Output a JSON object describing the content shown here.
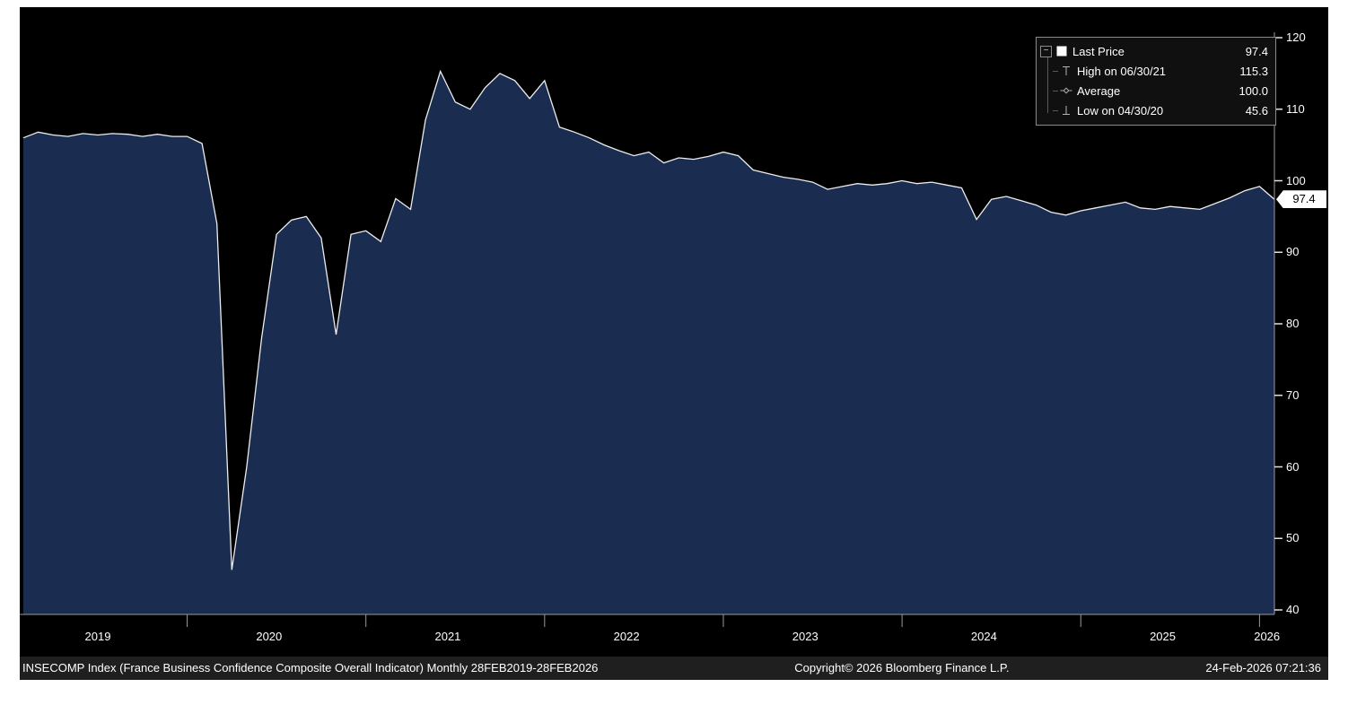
{
  "colors": {
    "page_bg": "#ffffff",
    "chart_bg": "#000000",
    "area_fill": "#1a2c50",
    "line": "#ededed",
    "axis": "#9a9a9a",
    "tick": "#e0e0e0",
    "axis_text": "#ffffff",
    "footer_bg": "#1f1f1f",
    "legend_bg": "#101010",
    "legend_border": "#8a8a8a",
    "tag_bg": "#ffffff",
    "tag_text": "#000000"
  },
  "legend": {
    "collapse_glyph": "−",
    "items": [
      {
        "marker": "last-price-square",
        "label": "Last Price",
        "value": "97.4"
      },
      {
        "marker": "high-marker",
        "label": "High on 06/30/21",
        "value": "115.3"
      },
      {
        "marker": "average-marker",
        "label": "Average",
        "value": "100.0"
      },
      {
        "marker": "low-marker",
        "label": "Low on 04/30/20",
        "value": "45.6"
      }
    ]
  },
  "last_price_tag": "97.4",
  "footer": {
    "left": "INSECOMP Index (France Business Confidence Composite Overall Indicator) Monthly 28FEB2019-28FEB2026",
    "center": "Copyright© 2026 Bloomberg Finance L.P.",
    "right": "24-Feb-2026 07:21:36"
  },
  "chart_data": {
    "type": "area",
    "title": "INSECOMP Index (France Business Confidence Composite Overall Indicator)",
    "frequency": "Monthly",
    "period": "28FEB2019-28FEB2026",
    "x_start": "2019-02",
    "x_end": "2026-02",
    "start_month": "2019-02",
    "ylim": [
      40,
      120
    ],
    "y_ticks": [
      40,
      50,
      60,
      70,
      80,
      90,
      100,
      110,
      120
    ],
    "x_year_labels": [
      "2019",
      "2020",
      "2021",
      "2022",
      "2023",
      "2024",
      "2025",
      "2026"
    ],
    "last_price": 97.4,
    "high": {
      "date": "06/30/21",
      "value": 115.3
    },
    "average": 100.0,
    "low": {
      "date": "04/30/20",
      "value": 45.6
    },
    "values": [
      106.0,
      106.8,
      106.4,
      106.2,
      106.6,
      106.4,
      106.6,
      106.5,
      106.2,
      106.5,
      106.2,
      106.2,
      105.2,
      94.0,
      45.6,
      60.0,
      78.0,
      92.5,
      94.5,
      95.0,
      92.0,
      78.5,
      92.5,
      93.0,
      91.5,
      97.5,
      96.0,
      108.5,
      115.3,
      111.0,
      110.0,
      113.0,
      115.0,
      114.0,
      111.5,
      114.0,
      107.5,
      106.8,
      106.0,
      105.0,
      104.2,
      103.5,
      104.0,
      102.5,
      103.2,
      103.0,
      103.4,
      104.0,
      103.5,
      101.5,
      101.0,
      100.5,
      100.2,
      99.8,
      98.8,
      99.2,
      99.6,
      99.4,
      99.6,
      100.0,
      99.6,
      99.8,
      99.4,
      99.0,
      94.6,
      97.4,
      97.8,
      97.2,
      96.6,
      95.6,
      95.2,
      95.8,
      96.2,
      96.6,
      97.0,
      96.2,
      96.0,
      96.4,
      96.2,
      96.0,
      96.8,
      97.6,
      98.6,
      99.2,
      97.4
    ]
  }
}
